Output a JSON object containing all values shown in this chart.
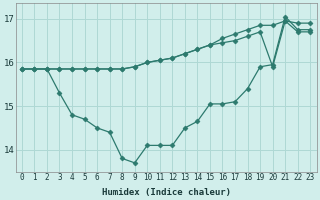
{
  "xlabel": "Humidex (Indice chaleur)",
  "ylabel": "",
  "bg_color": "#d1eeeb",
  "grid_color": "#aed8d4",
  "line_color": "#2d7a6e",
  "xlim": [
    -0.5,
    23.5
  ],
  "ylim": [
    13.5,
    17.35
  ],
  "yticks": [
    14,
    15,
    16,
    17
  ],
  "xticks": [
    0,
    1,
    2,
    3,
    4,
    5,
    6,
    7,
    8,
    9,
    10,
    11,
    12,
    13,
    14,
    15,
    16,
    17,
    18,
    19,
    20,
    21,
    22,
    23
  ],
  "line1_x": [
    0,
    1,
    2,
    3,
    4,
    5,
    6,
    7,
    8,
    9,
    10,
    11,
    12,
    13,
    14,
    15,
    16,
    17,
    18,
    19,
    20,
    21,
    22,
    23
  ],
  "line1_y": [
    15.85,
    15.85,
    15.85,
    15.3,
    14.8,
    14.7,
    14.5,
    14.4,
    13.8,
    13.7,
    14.1,
    14.1,
    14.1,
    14.5,
    14.65,
    15.05,
    15.05,
    15.1,
    15.4,
    15.9,
    15.95,
    17.05,
    16.75,
    16.75
  ],
  "line2_x": [
    0,
    1,
    2,
    3,
    4,
    5,
    6,
    7,
    8,
    9,
    10,
    11,
    12,
    13,
    14,
    15,
    16,
    17,
    18,
    19,
    20,
    21,
    22,
    23
  ],
  "line2_y": [
    15.85,
    15.85,
    15.85,
    15.85,
    15.85,
    15.85,
    15.85,
    15.85,
    15.85,
    15.9,
    16.0,
    16.05,
    16.1,
    16.2,
    16.3,
    16.4,
    16.45,
    16.5,
    16.6,
    16.7,
    15.9,
    16.95,
    16.7,
    16.7
  ],
  "line3_x": [
    0,
    1,
    2,
    3,
    4,
    5,
    6,
    7,
    8,
    9,
    10,
    11,
    12,
    13,
    14,
    15,
    16,
    17,
    18,
    19,
    20,
    21,
    22,
    23
  ],
  "line3_y": [
    15.85,
    15.85,
    15.85,
    15.85,
    15.85,
    15.85,
    15.85,
    15.85,
    15.85,
    15.9,
    16.0,
    16.05,
    16.1,
    16.2,
    16.3,
    16.4,
    16.55,
    16.65,
    16.75,
    16.85,
    16.85,
    16.95,
    16.9,
    16.9
  ],
  "marker": "D",
  "marker_size": 2.5,
  "line_width": 0.9
}
